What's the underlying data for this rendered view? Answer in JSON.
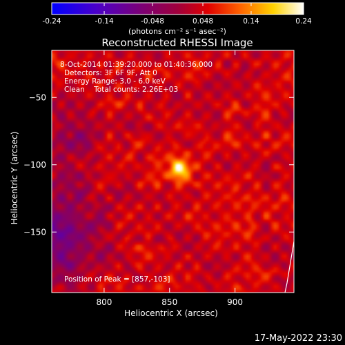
{
  "chart_data": {
    "type": "heatmap",
    "colorbar": {
      "min": -0.24,
      "max": 0.24,
      "ticks": [
        "-0.24",
        "-0.14",
        "-0.048",
        "0.048",
        "0.14",
        "0.24"
      ],
      "tick_values": [
        -0.24,
        -0.14,
        -0.048,
        0.048,
        0.14,
        0.24
      ],
      "unit_label": "(photons cm⁻² s⁻¹ asec⁻²)"
    },
    "title": "Reconstructed RHESSI Image",
    "annotations": [
      "8-Oct-2014 01:39:20.000 to 01:40:36.000",
      "Detectors: 3F 6F 9F, Att 0",
      "Energy Range: 3.0 - 6.0 keV",
      "Clean    Total counts: 2.26E+03"
    ],
    "peak_label": "Position of Peak = [857,-103]",
    "xlabel": "Heliocentric X (arcsec)",
    "ylabel": "Heliocentric Y (arcsec)",
    "xlim": [
      760,
      945
    ],
    "ylim": [
      -195,
      -15
    ],
    "x_ticks": [
      800,
      850,
      900
    ],
    "x_tick_labels": [
      "800",
      "850",
      "900"
    ],
    "y_ticks": [
      -50,
      -100,
      -150
    ],
    "y_tick_labels": [
      "−50",
      "−100",
      "−150"
    ],
    "peak": {
      "x": 857,
      "y": -103,
      "value": 0.24
    },
    "grid": false,
    "colormap": "RHESSI rainbow (blue-purple-red-orange-yellow-white)"
  },
  "footer_date": "17-May-2022 23:30"
}
